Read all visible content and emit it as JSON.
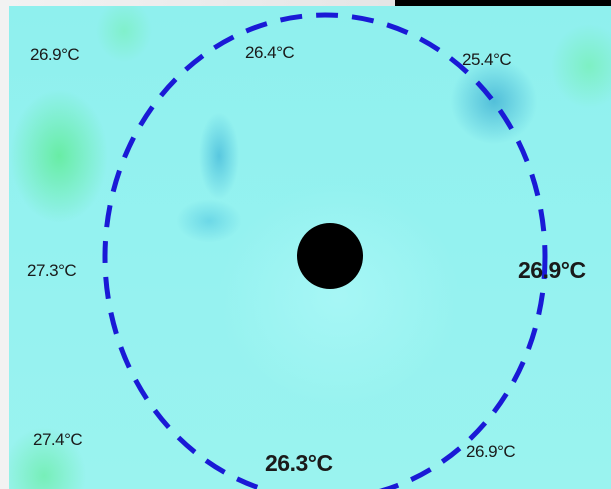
{
  "thermal_map": {
    "center_marker": "black-dot",
    "ring_color": "#1a1ad6",
    "readings": {
      "top_left": "26.9°C",
      "top_center": "26.4°C",
      "top_right": "25.4°C",
      "mid_left": "27.3°C",
      "mid_right": "26.9°C",
      "bottom_left": "27.4°C",
      "bottom_center": "26.3°C",
      "bottom_right": "26.9°C"
    }
  }
}
